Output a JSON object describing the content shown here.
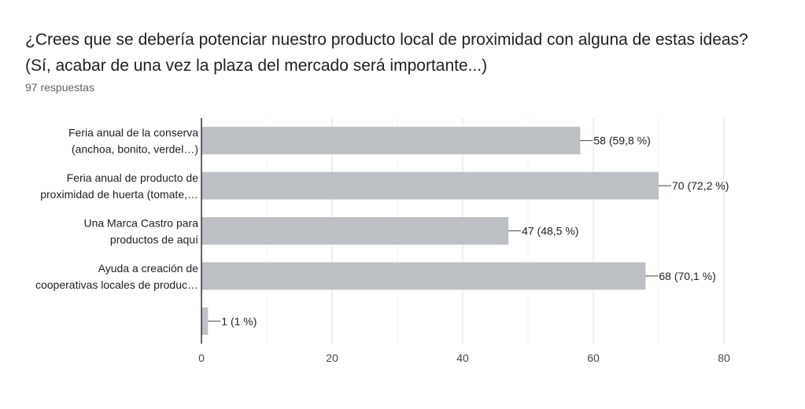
{
  "question": {
    "title_line1": "¿Crees que se debería potenciar nuestro producto local de proximidad con alguna de estas ideas?",
    "title_line2": "(Sí, acabar de una vez la plaza del mercado será importante...)",
    "responses": "97 respuestas"
  },
  "chart_data": {
    "type": "bar",
    "orientation": "horizontal",
    "categories": [
      [
        "Feria anual de la conserva",
        "(anchoa, bonito, verdel…)"
      ],
      [
        "Feria anual de producto de",
        "proximidad de huerta (tomate,…"
      ],
      [
        "Una Marca Castro para",
        "productos de aquí"
      ],
      [
        "Ayuda a creación de",
        "cooperativas locales de produc…"
      ],
      [
        "",
        ""
      ]
    ],
    "values": [
      58,
      70,
      47,
      68,
      1
    ],
    "labels": [
      "58 (59,8 %)",
      "70 (72,2 %)",
      "47 (48,5 %)",
      "68 (70,1 %)",
      "1 (1 %)"
    ],
    "xlim": [
      0,
      80
    ],
    "xticks": [
      0,
      20,
      40,
      60,
      80
    ],
    "grid": true,
    "bar_color": "#bdc1c6"
  }
}
